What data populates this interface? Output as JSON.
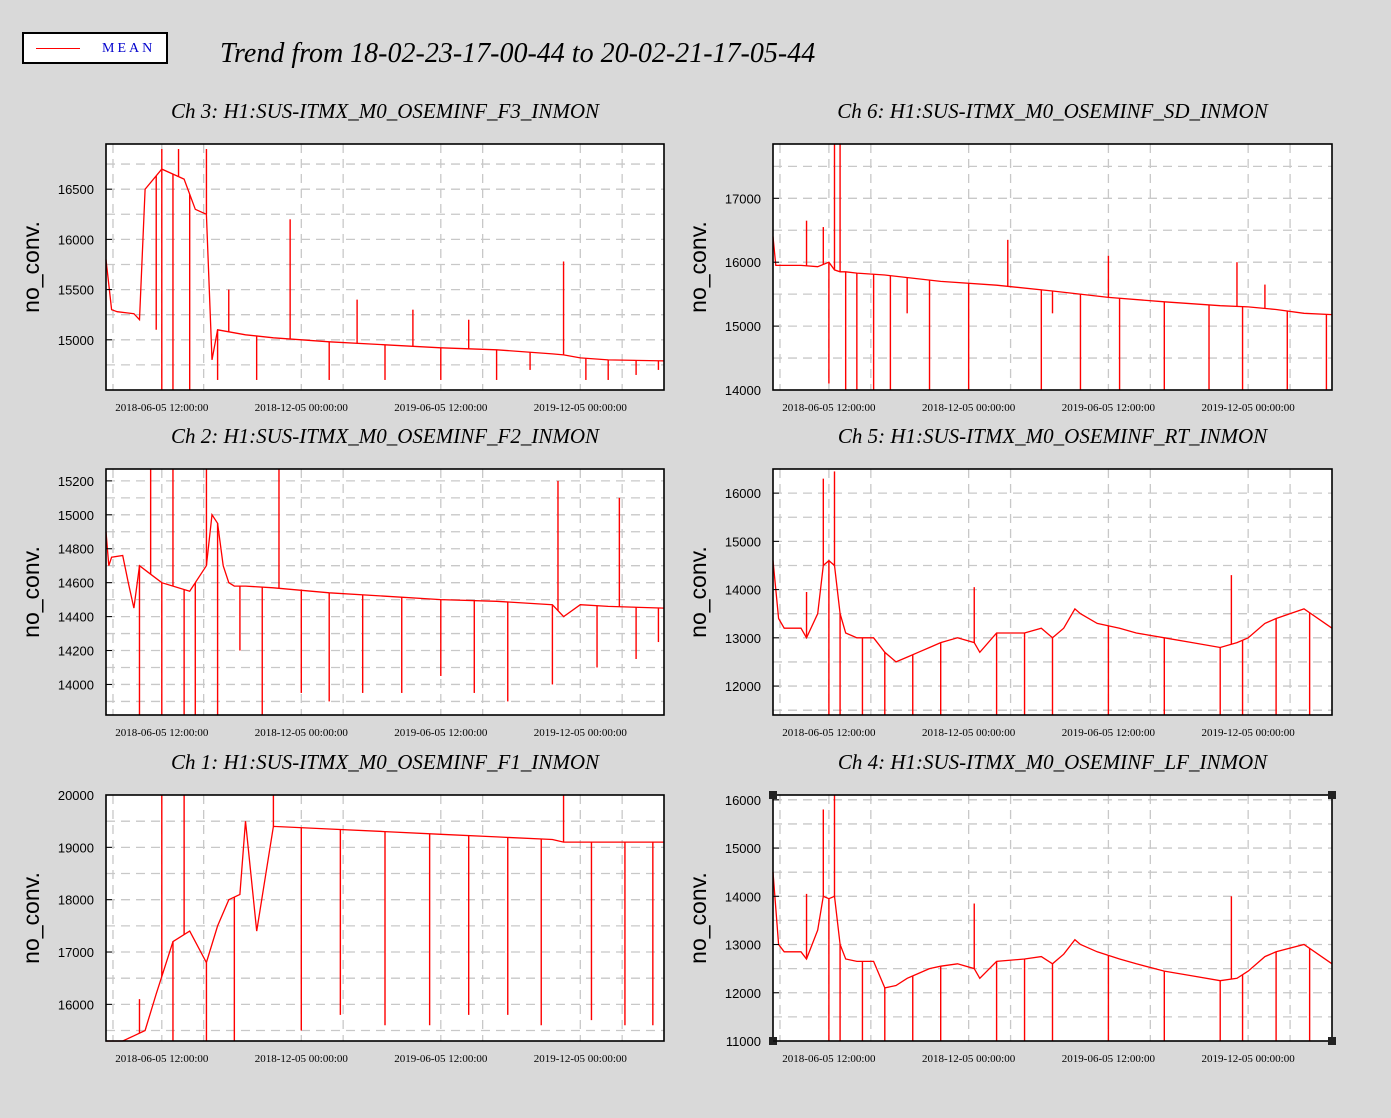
{
  "legend": {
    "label": "MEAN",
    "color": "#ff0000"
  },
  "title": "Trend from 18-02-23-17-00-44 to 20-02-21-17-05-44",
  "colors": {
    "trace": "#ff0000",
    "background": "#d9d9d9",
    "panel": "#ffffff",
    "grid": "#c8c8c8"
  },
  "chart_data": [
    {
      "type": "line",
      "title": "Ch 3: H1:SUS-ITMX_M0_OSEMINF_F3_INMON",
      "ylabel": "no_conv.",
      "xticks": [
        "2018-06-05 12:00:00",
        "2018-12-05 00:00:00",
        "2019-06-05 12:00:00",
        "2019-12-05 00:00:00"
      ],
      "yticks": [
        15000,
        15500,
        16000,
        16500
      ],
      "ylim": [
        14500,
        16950
      ],
      "x": [
        0,
        0.01,
        0.02,
        0.05,
        0.06,
        0.07,
        0.1,
        0.12,
        0.14,
        0.16,
        0.18,
        0.19,
        0.2,
        0.22,
        0.25,
        0.3,
        0.35,
        0.4,
        0.5,
        0.6,
        0.7,
        0.8,
        0.82,
        0.85,
        0.9,
        1.0
      ],
      "series": [
        {
          "name": "MEAN",
          "values": [
            15800,
            15300,
            15280,
            15260,
            15200,
            16500,
            16700,
            16650,
            16600,
            16300,
            16250,
            14800,
            15100,
            15080,
            15050,
            15020,
            15000,
            14980,
            14950,
            14920,
            14900,
            14860,
            14850,
            14820,
            14800,
            14790
          ]
        }
      ],
      "spikes": [
        {
          "x": 0.09,
          "y": 15100
        },
        {
          "x": 0.1,
          "y": 14500
        },
        {
          "x": 0.1,
          "y": 16900
        },
        {
          "x": 0.12,
          "y": 14500
        },
        {
          "x": 0.13,
          "y": 16900
        },
        {
          "x": 0.15,
          "y": 14500
        },
        {
          "x": 0.18,
          "y": 16900
        },
        {
          "x": 0.2,
          "y": 14600
        },
        {
          "x": 0.22,
          "y": 15500
        },
        {
          "x": 0.27,
          "y": 14600
        },
        {
          "x": 0.33,
          "y": 16200
        },
        {
          "x": 0.4,
          "y": 14600
        },
        {
          "x": 0.45,
          "y": 15400
        },
        {
          "x": 0.5,
          "y": 14600
        },
        {
          "x": 0.55,
          "y": 15300
        },
        {
          "x": 0.6,
          "y": 14600
        },
        {
          "x": 0.65,
          "y": 15200
        },
        {
          "x": 0.7,
          "y": 14600
        },
        {
          "x": 0.76,
          "y": 14700
        },
        {
          "x": 0.82,
          "y": 15780
        },
        {
          "x": 0.86,
          "y": 14600
        },
        {
          "x": 0.9,
          "y": 14600
        },
        {
          "x": 0.95,
          "y": 14650
        },
        {
          "x": 0.99,
          "y": 14700
        }
      ]
    },
    {
      "type": "line",
      "title": "Ch 6: H1:SUS-ITMX_M0_OSEMINF_SD_INMON",
      "ylabel": "no_conv.",
      "xticks": [
        "2018-06-05 12:00:00",
        "2018-12-05 00:00:00",
        "2019-06-05 12:00:00",
        "2019-12-05 00:00:00"
      ],
      "yticks": [
        14000,
        15000,
        16000,
        17000
      ],
      "ylim": [
        14000,
        17850
      ],
      "x": [
        0,
        0.005,
        0.01,
        0.05,
        0.08,
        0.1,
        0.11,
        0.12,
        0.13,
        0.15,
        0.2,
        0.3,
        0.4,
        0.5,
        0.6,
        0.7,
        0.8,
        0.85,
        0.9,
        0.95,
        1.0
      ],
      "series": [
        {
          "name": "MEAN",
          "values": [
            16400,
            15950,
            15950,
            15950,
            15930,
            16000,
            15880,
            15850,
            15850,
            15830,
            15800,
            15700,
            15640,
            15550,
            15450,
            15380,
            15320,
            15300,
            15260,
            15200,
            15180
          ]
        }
      ],
      "spikes": [
        {
          "x": 0.06,
          "y": 16650
        },
        {
          "x": 0.09,
          "y": 16550
        },
        {
          "x": 0.1,
          "y": 14100
        },
        {
          "x": 0.11,
          "y": 17850
        },
        {
          "x": 0.12,
          "y": 17850
        },
        {
          "x": 0.13,
          "y": 14000
        },
        {
          "x": 0.15,
          "y": 14000
        },
        {
          "x": 0.18,
          "y": 14000
        },
        {
          "x": 0.21,
          "y": 14000
        },
        {
          "x": 0.24,
          "y": 15200
        },
        {
          "x": 0.28,
          "y": 14000
        },
        {
          "x": 0.35,
          "y": 14000
        },
        {
          "x": 0.42,
          "y": 16350
        },
        {
          "x": 0.48,
          "y": 14000
        },
        {
          "x": 0.5,
          "y": 15200
        },
        {
          "x": 0.55,
          "y": 14000
        },
        {
          "x": 0.6,
          "y": 16100
        },
        {
          "x": 0.62,
          "y": 14000
        },
        {
          "x": 0.7,
          "y": 14000
        },
        {
          "x": 0.78,
          "y": 14000
        },
        {
          "x": 0.83,
          "y": 16000
        },
        {
          "x": 0.84,
          "y": 14000
        },
        {
          "x": 0.88,
          "y": 15650
        },
        {
          "x": 0.92,
          "y": 14000
        },
        {
          "x": 0.99,
          "y": 14000
        }
      ]
    },
    {
      "type": "line",
      "title": "Ch 2: H1:SUS-ITMX_M0_OSEMINF_F2_INMON",
      "ylabel": "no_conv.",
      "xticks": [
        "2018-06-05 12:00:00",
        "2018-12-05 00:00:00",
        "2019-06-05 12:00:00",
        "2019-12-05 00:00:00"
      ],
      "yticks": [
        14000,
        14200,
        14400,
        14600,
        14800,
        15000,
        15200
      ],
      "ylim": [
        13820,
        15270
      ],
      "x": [
        0,
        0.005,
        0.01,
        0.03,
        0.04,
        0.05,
        0.06,
        0.08,
        0.1,
        0.15,
        0.18,
        0.19,
        0.2,
        0.21,
        0.22,
        0.23,
        0.25,
        0.3,
        0.4,
        0.5,
        0.6,
        0.7,
        0.8,
        0.82,
        0.85,
        0.9,
        1.0
      ],
      "series": [
        {
          "name": "MEAN",
          "values": [
            14900,
            14700,
            14750,
            14760,
            14600,
            14450,
            14700,
            14650,
            14600,
            14550,
            14700,
            15000,
            14950,
            14700,
            14600,
            14580,
            14580,
            14570,
            14540,
            14520,
            14500,
            14490,
            14470,
            14400,
            14470,
            14460,
            14450
          ]
        }
      ],
      "spikes": [
        {
          "x": 0.06,
          "y": 13820
        },
        {
          "x": 0.08,
          "y": 15270
        },
        {
          "x": 0.1,
          "y": 13820
        },
        {
          "x": 0.12,
          "y": 15270
        },
        {
          "x": 0.14,
          "y": 13820
        },
        {
          "x": 0.16,
          "y": 13820
        },
        {
          "x": 0.18,
          "y": 15270
        },
        {
          "x": 0.2,
          "y": 13820
        },
        {
          "x": 0.24,
          "y": 14200
        },
        {
          "x": 0.28,
          "y": 13820
        },
        {
          "x": 0.31,
          "y": 15270
        },
        {
          "x": 0.35,
          "y": 13950
        },
        {
          "x": 0.4,
          "y": 13900
        },
        {
          "x": 0.46,
          "y": 13950
        },
        {
          "x": 0.53,
          "y": 13950
        },
        {
          "x": 0.6,
          "y": 14050
        },
        {
          "x": 0.66,
          "y": 13950
        },
        {
          "x": 0.72,
          "y": 13900
        },
        {
          "x": 0.8,
          "y": 14000
        },
        {
          "x": 0.81,
          "y": 15200
        },
        {
          "x": 0.88,
          "y": 14100
        },
        {
          "x": 0.92,
          "y": 15100
        },
        {
          "x": 0.95,
          "y": 14150
        },
        {
          "x": 0.99,
          "y": 14250
        }
      ]
    },
    {
      "type": "line",
      "title": "Ch 5: H1:SUS-ITMX_M0_OSEMINF_RT_INMON",
      "ylabel": "no_conv.",
      "xticks": [
        "2018-06-05 12:00:00",
        "2018-12-05 00:00:00",
        "2019-06-05 12:00:00",
        "2019-12-05 00:00:00"
      ],
      "yticks": [
        12000,
        13000,
        14000,
        15000,
        16000
      ],
      "ylim": [
        11400,
        16500
      ],
      "x": [
        0,
        0.01,
        0.02,
        0.05,
        0.06,
        0.08,
        0.09,
        0.1,
        0.11,
        0.12,
        0.13,
        0.15,
        0.18,
        0.2,
        0.22,
        0.24,
        0.26,
        0.28,
        0.3,
        0.33,
        0.36,
        0.37,
        0.4,
        0.45,
        0.48,
        0.5,
        0.52,
        0.54,
        0.55,
        0.58,
        0.62,
        0.65,
        0.7,
        0.75,
        0.8,
        0.83,
        0.85,
        0.88,
        0.9,
        0.95,
        1.0
      ],
      "series": [
        {
          "name": "MEAN",
          "values": [
            14600,
            13400,
            13200,
            13200,
            13000,
            13500,
            14500,
            14600,
            14500,
            13500,
            13100,
            13000,
            13000,
            12700,
            12500,
            12600,
            12700,
            12800,
            12900,
            13000,
            12900,
            12700,
            13100,
            13100,
            13200,
            13000,
            13200,
            13600,
            13500,
            13300,
            13200,
            13100,
            13000,
            12900,
            12800,
            12900,
            13000,
            13300,
            13400,
            13600,
            13200
          ]
        }
      ],
      "spikes": [
        {
          "x": 0.06,
          "y": 13950
        },
        {
          "x": 0.09,
          "y": 16300
        },
        {
          "x": 0.1,
          "y": 11400
        },
        {
          "x": 0.11,
          "y": 16450
        },
        {
          "x": 0.12,
          "y": 11400
        },
        {
          "x": 0.16,
          "y": 11400
        },
        {
          "x": 0.2,
          "y": 11400
        },
        {
          "x": 0.25,
          "y": 11400
        },
        {
          "x": 0.3,
          "y": 11400
        },
        {
          "x": 0.36,
          "y": 14050
        },
        {
          "x": 0.4,
          "y": 11400
        },
        {
          "x": 0.45,
          "y": 11400
        },
        {
          "x": 0.5,
          "y": 11400
        },
        {
          "x": 0.6,
          "y": 11400
        },
        {
          "x": 0.7,
          "y": 11400
        },
        {
          "x": 0.8,
          "y": 11400
        },
        {
          "x": 0.82,
          "y": 14300
        },
        {
          "x": 0.84,
          "y": 11400
        },
        {
          "x": 0.9,
          "y": 11400
        },
        {
          "x": 0.96,
          "y": 11400
        }
      ]
    },
    {
      "type": "line",
      "title": "Ch 1: H1:SUS-ITMX_M0_OSEMINF_F1_INMON",
      "ylabel": "no_conv.",
      "xticks": [
        "2018-06-05 12:00:00",
        "2018-12-05 00:00:00",
        "2019-06-05 12:00:00",
        "2019-12-05 00:00:00"
      ],
      "yticks": [
        16000,
        17000,
        18000,
        19000,
        20000
      ],
      "ylim": [
        15300,
        20000
      ],
      "x": [
        0,
        0.03,
        0.05,
        0.07,
        0.09,
        0.12,
        0.15,
        0.18,
        0.2,
        0.22,
        0.24,
        0.25,
        0.27,
        0.3,
        0.4,
        0.5,
        0.6,
        0.7,
        0.8,
        0.82,
        0.9,
        1.0
      ],
      "series": [
        {
          "name": "MEAN",
          "values": [
            15300,
            15300,
            15400,
            15500,
            16200,
            17200,
            17400,
            16800,
            17500,
            18000,
            18100,
            19500,
            17400,
            19400,
            19350,
            19300,
            19250,
            19200,
            19150,
            19100,
            19100,
            19100
          ]
        }
      ],
      "spikes": [
        {
          "x": 0.06,
          "y": 16100
        },
        {
          "x": 0.1,
          "y": 20000
        },
        {
          "x": 0.12,
          "y": 15300
        },
        {
          "x": 0.14,
          "y": 20000
        },
        {
          "x": 0.18,
          "y": 15300
        },
        {
          "x": 0.23,
          "y": 15300
        },
        {
          "x": 0.3,
          "y": 20000
        },
        {
          "x": 0.35,
          "y": 15500
        },
        {
          "x": 0.42,
          "y": 15800
        },
        {
          "x": 0.5,
          "y": 15600
        },
        {
          "x": 0.58,
          "y": 15600
        },
        {
          "x": 0.65,
          "y": 15800
        },
        {
          "x": 0.72,
          "y": 15800
        },
        {
          "x": 0.78,
          "y": 15600
        },
        {
          "x": 0.82,
          "y": 20000
        },
        {
          "x": 0.87,
          "y": 15700
        },
        {
          "x": 0.93,
          "y": 15600
        },
        {
          "x": 0.98,
          "y": 15600
        }
      ]
    },
    {
      "type": "line",
      "title": "Ch 4: H1:SUS-ITMX_M0_OSEMINF_LF_INMON",
      "ylabel": "no_conv.",
      "xticks": [
        "2018-06-05 12:00:00",
        "2018-12-05 00:00:00",
        "2019-06-05 12:00:00",
        "2019-12-05 00:00:00"
      ],
      "yticks": [
        11000,
        12000,
        13000,
        14000,
        15000,
        16000
      ],
      "ylim": [
        11000,
        16100
      ],
      "selected": true,
      "x": [
        0,
        0.01,
        0.02,
        0.05,
        0.06,
        0.08,
        0.09,
        0.1,
        0.11,
        0.12,
        0.13,
        0.15,
        0.18,
        0.2,
        0.22,
        0.24,
        0.26,
        0.28,
        0.3,
        0.33,
        0.36,
        0.37,
        0.4,
        0.45,
        0.48,
        0.5,
        0.52,
        0.54,
        0.55,
        0.58,
        0.62,
        0.65,
        0.7,
        0.75,
        0.8,
        0.83,
        0.85,
        0.88,
        0.9,
        0.95,
        1.0
      ],
      "series": [
        {
          "name": "MEAN",
          "values": [
            14500,
            13000,
            12850,
            12850,
            12700,
            13300,
            14000,
            13950,
            14000,
            13000,
            12700,
            12650,
            12650,
            12100,
            12150,
            12300,
            12400,
            12500,
            12550,
            12600,
            12500,
            12300,
            12650,
            12700,
            12750,
            12600,
            12800,
            13100,
            13000,
            12850,
            12700,
            12600,
            12450,
            12350,
            12250,
            12300,
            12450,
            12750,
            12850,
            13000,
            12600
          ]
        }
      ],
      "spikes": [
        {
          "x": 0.06,
          "y": 14050
        },
        {
          "x": 0.09,
          "y": 15800
        },
        {
          "x": 0.1,
          "y": 11000
        },
        {
          "x": 0.11,
          "y": 16100
        },
        {
          "x": 0.12,
          "y": 11000
        },
        {
          "x": 0.16,
          "y": 11000
        },
        {
          "x": 0.2,
          "y": 11000
        },
        {
          "x": 0.25,
          "y": 11000
        },
        {
          "x": 0.3,
          "y": 11000
        },
        {
          "x": 0.36,
          "y": 13850
        },
        {
          "x": 0.4,
          "y": 11000
        },
        {
          "x": 0.45,
          "y": 11000
        },
        {
          "x": 0.5,
          "y": 11000
        },
        {
          "x": 0.6,
          "y": 11000
        },
        {
          "x": 0.7,
          "y": 11000
        },
        {
          "x": 0.8,
          "y": 11000
        },
        {
          "x": 0.82,
          "y": 14000
        },
        {
          "x": 0.84,
          "y": 11000
        },
        {
          "x": 0.9,
          "y": 11000
        },
        {
          "x": 0.96,
          "y": 11000
        }
      ]
    }
  ]
}
